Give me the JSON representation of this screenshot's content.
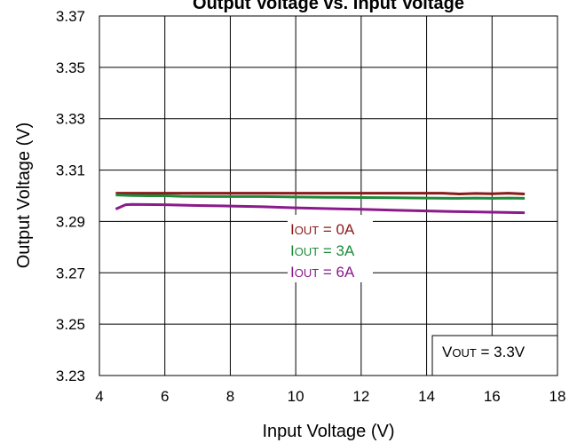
{
  "chart_data": {
    "type": "line",
    "title": "Output Voltage vs. Input Voltage",
    "xlabel": "Input Voltage (V)",
    "ylabel": "Output Voltage (V)",
    "xlim": [
      4,
      18
    ],
    "ylim": [
      3.23,
      3.37
    ],
    "xticks": [
      "4",
      "6",
      "8",
      "10",
      "12",
      "14",
      "16",
      "18"
    ],
    "yticks": [
      "3.23",
      "3.25",
      "3.27",
      "3.29",
      "3.31",
      "3.33",
      "3.35",
      "3.37"
    ],
    "grid": true,
    "series": [
      {
        "name": "IOUT = 0A",
        "color": "#8B1A1A",
        "x": [
          4.5,
          5.5,
          6.5,
          7.5,
          8.5,
          9.5,
          10.5,
          11.5,
          12.5,
          13.5,
          14.5,
          15.0,
          15.5,
          16.0,
          16.5,
          17.0
        ],
        "y": [
          3.301,
          3.301,
          3.301,
          3.301,
          3.301,
          3.301,
          3.301,
          3.301,
          3.301,
          3.301,
          3.301,
          3.3007,
          3.3009,
          3.3008,
          3.301,
          3.3007
        ]
      },
      {
        "name": "IOUT = 3A",
        "color": "#1E8B3A",
        "x": [
          4.5,
          5.0,
          5.5,
          6.0,
          6.5,
          7.5,
          8.0,
          9.0,
          10.0,
          11.0,
          12.0,
          13.0,
          14.0,
          15.0,
          15.5,
          16.0,
          16.5,
          17.0
        ],
        "y": [
          3.3003,
          3.3001,
          3.3,
          3.3,
          3.2998,
          3.2997,
          3.2997,
          3.2997,
          3.2995,
          3.2994,
          3.2993,
          3.2992,
          3.2991,
          3.299,
          3.2991,
          3.299,
          3.2991,
          3.299
        ]
      },
      {
        "name": "IOUT = 6A",
        "color": "#8B1A8B",
        "x": [
          4.5,
          4.8,
          5.0,
          6.0,
          7.0,
          8.0,
          9.0,
          10.0,
          11.0,
          12.0,
          13.0,
          14.0,
          15.0,
          16.0,
          17.0
        ],
        "y": [
          3.2948,
          3.2965,
          3.2966,
          3.2965,
          3.2962,
          3.296,
          3.2957,
          3.2953,
          3.295,
          3.2947,
          3.2944,
          3.2941,
          3.2938,
          3.2936,
          3.2934
        ]
      }
    ],
    "legend": {
      "placement": "center",
      "entries": [
        {
          "main": "I",
          "sub": "OUT",
          "rest": " = 0A",
          "color": "#8B1A1A"
        },
        {
          "main": "I",
          "sub": "OUT",
          "rest": " = 3A",
          "color": "#1E8B3A"
        },
        {
          "main": "I",
          "sub": "OUT",
          "rest": " = 6A",
          "color": "#8B1A8B"
        }
      ]
    },
    "annotation": {
      "main": "V",
      "sub": "OUT",
      "rest": " = 3.3V",
      "placement": "bottom-right"
    }
  }
}
